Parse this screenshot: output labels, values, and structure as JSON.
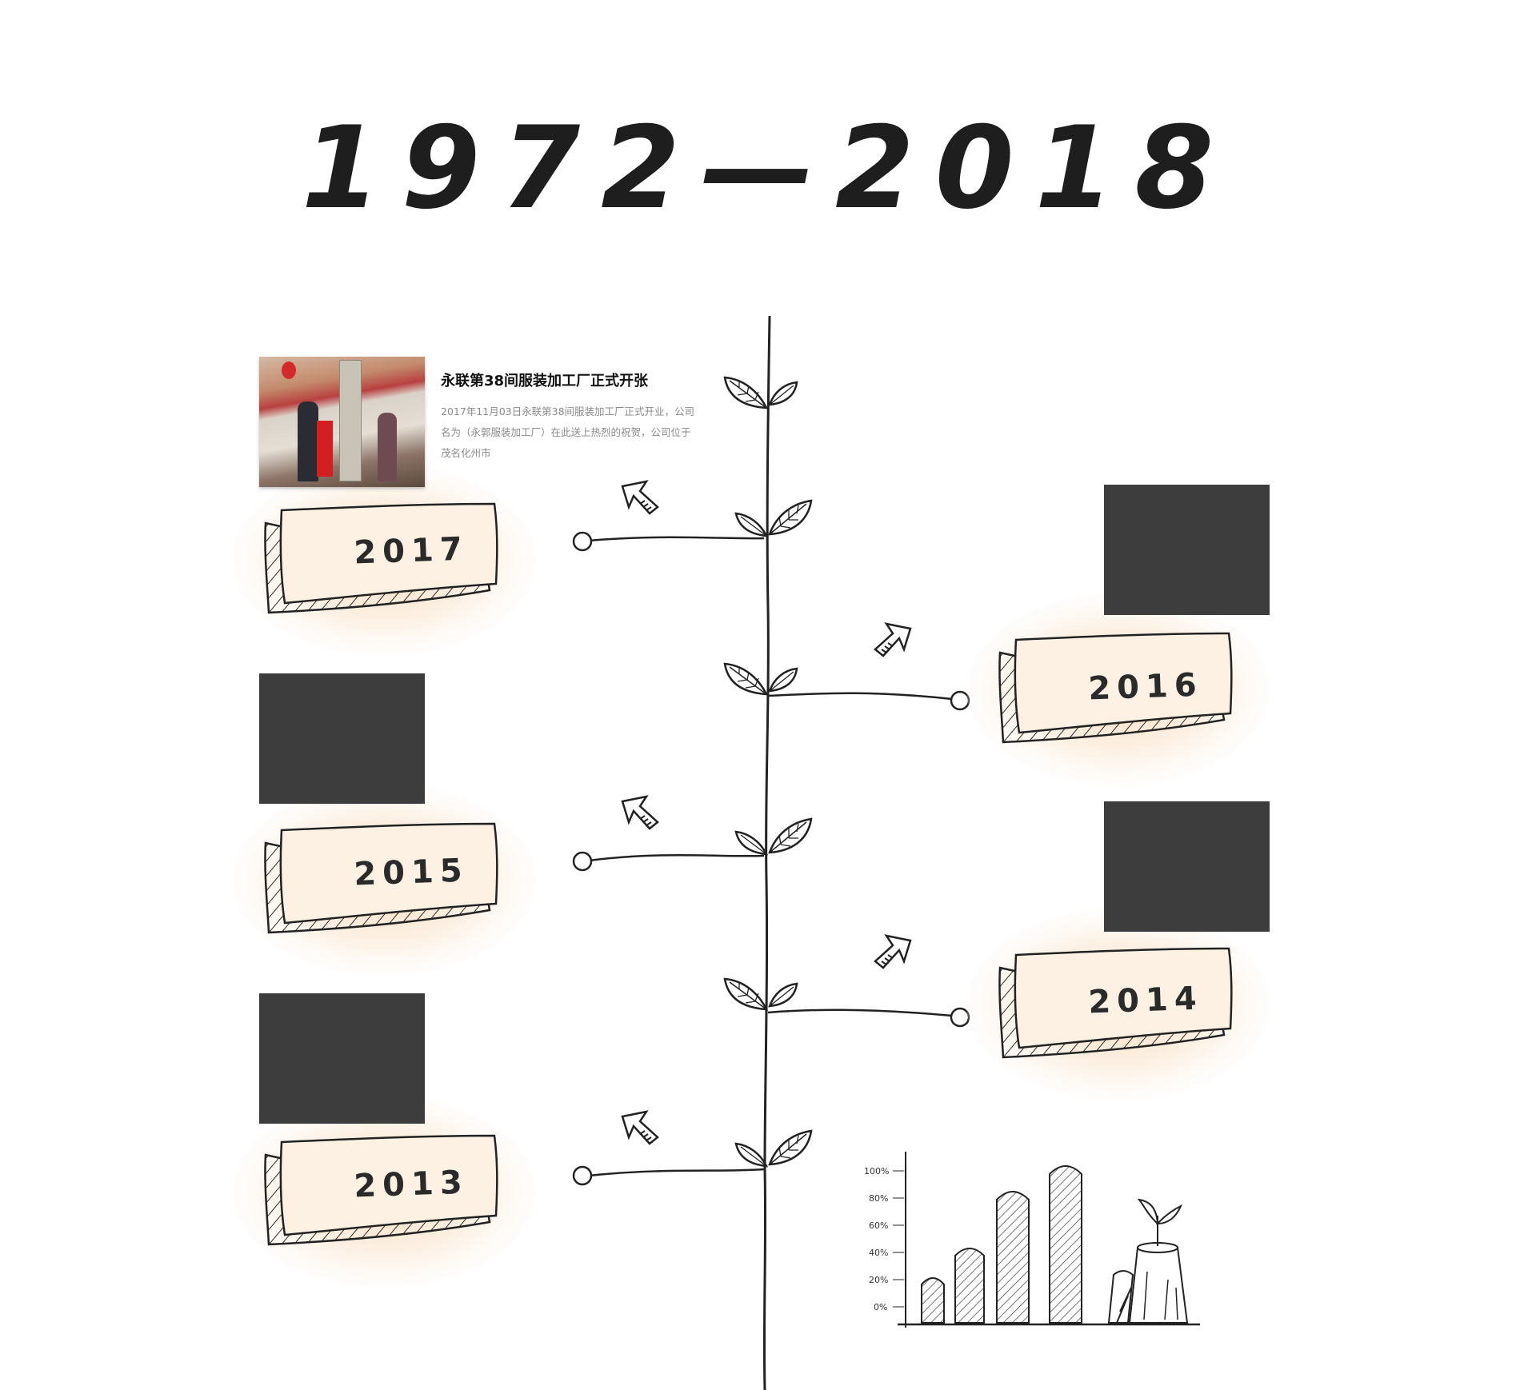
{
  "title": "1972—2018",
  "featured_event": {
    "heading": "永联第38间服装加工厂正式开张",
    "description": "2017年11月03日永联第38间服装加工厂正式开业，公司名为（永郭服装加工厂）在此送上热烈的祝贺，公司位于茂名化州市"
  },
  "years": [
    "2017",
    "2016",
    "2015",
    "2014",
    "2013"
  ],
  "growth_chart": {
    "y_ticks": [
      "100%",
      "80%",
      "60%",
      "40%",
      "20%",
      "0%"
    ],
    "bar_values": [
      20,
      40,
      80,
      100
    ]
  }
}
